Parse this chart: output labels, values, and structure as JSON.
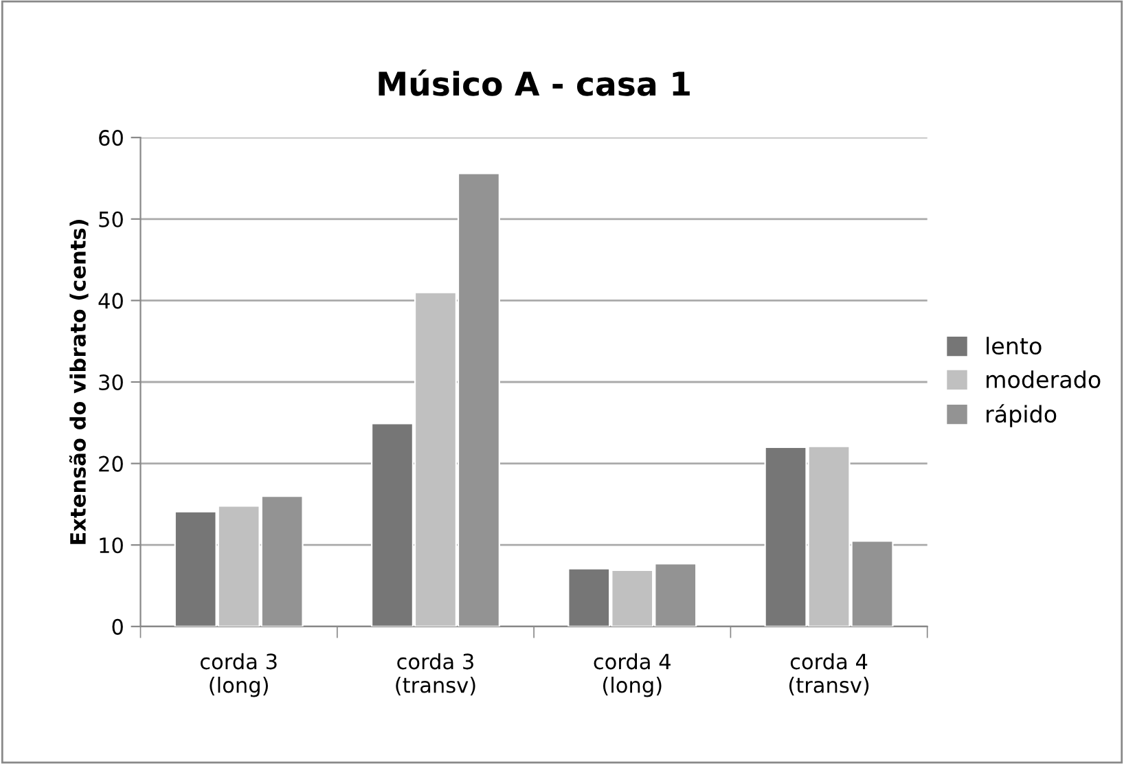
{
  "chart_data": {
    "type": "bar",
    "title": "Músico A - casa 1",
    "ylabel": "Extensão do vibrato (cents)",
    "categories": [
      "corda 3\n(long)",
      "corda 3\n(transv)",
      "corda 4\n(long)",
      "corda 4\n(transv)"
    ],
    "series": [
      {
        "name": "lento",
        "color": "#767676",
        "values": [
          14.1,
          24.9,
          7.1,
          22.0
        ]
      },
      {
        "name": "moderado",
        "color": "#c0c0c0",
        "values": [
          14.8,
          41.0,
          6.9,
          22.1
        ]
      },
      {
        "name": "rápido",
        "color": "#939393",
        "values": [
          16.0,
          55.6,
          7.7,
          10.5
        ]
      }
    ],
    "ylim": [
      0,
      60
    ],
    "yticks": [
      0,
      10,
      20,
      30,
      40,
      50,
      60
    ],
    "grid": "y",
    "legend": "right"
  }
}
